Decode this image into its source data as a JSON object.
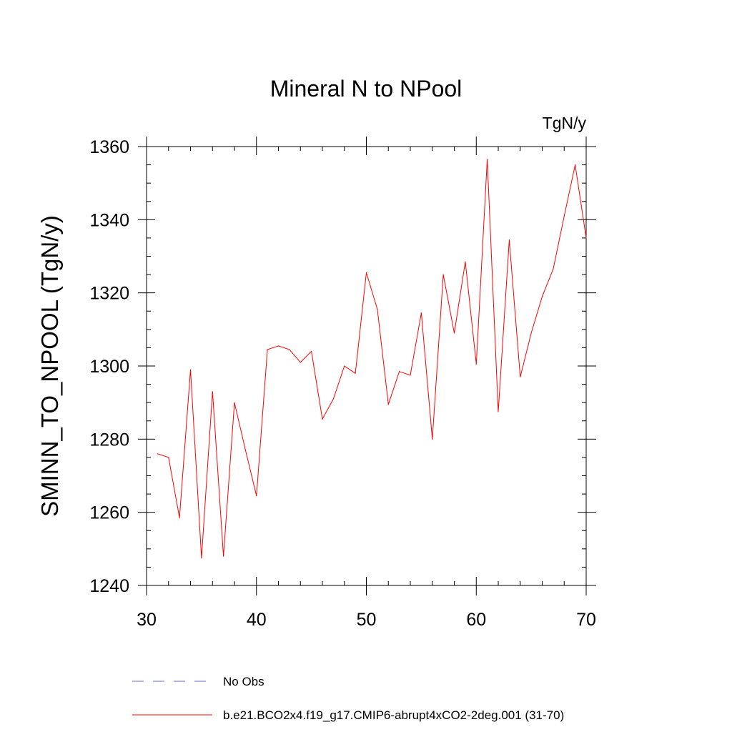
{
  "chart_data": {
    "type": "line",
    "title": "Mineral N to NPool",
    "units_label": "TgN/y",
    "xlabel": "",
    "ylabel": "SMINN_TO_NPOOL  (TgN/y)",
    "xlim": [
      30,
      70
    ],
    "ylim": [
      1240,
      1360
    ],
    "x_ticks": [
      30,
      40,
      50,
      60,
      70
    ],
    "y_ticks": [
      1240,
      1260,
      1280,
      1300,
      1320,
      1340,
      1360
    ],
    "grid": false,
    "legend_position": "bottom",
    "legend": [
      {
        "label": "No Obs",
        "color": "#6a6acd",
        "style": "dashed"
      },
      {
        "label": "b.e21.BCO2x4.f19_g17.CMIP6-abrupt4xCO2-2deg.001 (31-70)",
        "color": "#ff0000",
        "style": "solid"
      }
    ],
    "series": [
      {
        "name": "b.e21.BCO2x4.f19_g17.CMIP6-abrupt4xCO2-2deg.001 (31-70)",
        "color": "#ff0000",
        "x": [
          31,
          32,
          33,
          34,
          35,
          36,
          37,
          38,
          39,
          40,
          41,
          42,
          43,
          44,
          45,
          46,
          47,
          48,
          49,
          50,
          51,
          52,
          53,
          54,
          55,
          56,
          57,
          58,
          59,
          60,
          61,
          62,
          63,
          64,
          65,
          66,
          67,
          68,
          69,
          70
        ],
        "y": [
          1276,
          1275,
          1258.5,
          1299,
          1247.5,
          1293,
          1248,
          1290,
          1277,
          1264.5,
          1304.5,
          1305.5,
          1304.5,
          1301,
          1304,
          1285.5,
          1291,
          1300,
          1298,
          1325.5,
          1315.5,
          1289.5,
          1298.5,
          1297.5,
          1314.5,
          1280,
          1325,
          1309,
          1328.5,
          1300.5,
          1356.5,
          1287.5,
          1334.5,
          1297,
          1309,
          1319,
          1326.5,
          1341,
          1355,
          1335
        ]
      }
    ]
  }
}
